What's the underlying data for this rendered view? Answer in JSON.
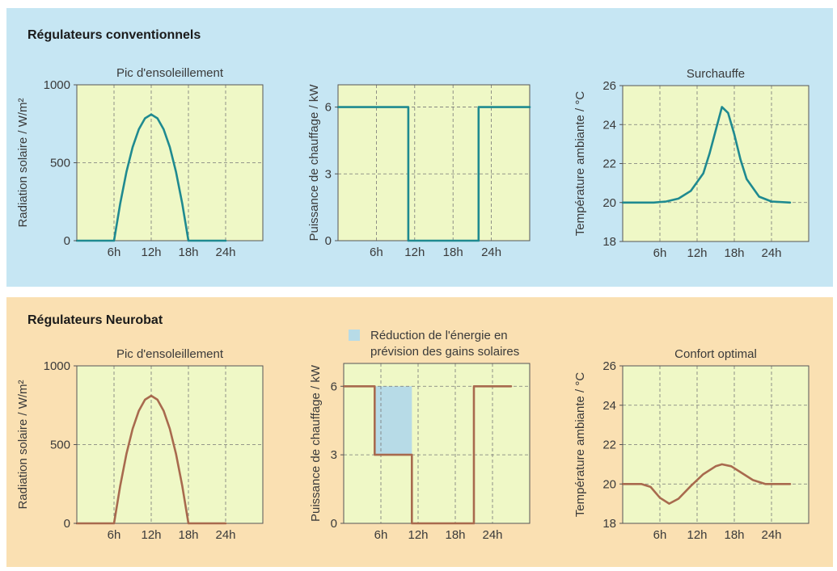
{
  "sections": {
    "top_title": "Régulateurs conventionnels",
    "bottom_title": "Régulateurs Neurobat"
  },
  "legend": {
    "text_line1": "Réduction de l'énergie en",
    "text_line2": "prévision des gains solaires",
    "swatch_color": "#b7dbe7"
  },
  "colors": {
    "plot_bg": "#eff8c6",
    "conventional_line": "#1f8a90",
    "neurobat_line": "#a86a4e"
  },
  "chart_data": [
    {
      "type": "line",
      "title": "Pic d'ensoleillement",
      "ylabel": "Radiation solaire / W/m²",
      "xlabel": "",
      "x_tick_labels": [
        "6h",
        "12h",
        "18h",
        "24h"
      ],
      "y_ticks": [
        0,
        500,
        1000
      ],
      "ylim": [
        0,
        1000
      ],
      "xlim": [
        0,
        30
      ],
      "grid": true,
      "series": [
        {
          "x": [
            0,
            6,
            7,
            8,
            9,
            10,
            11,
            12,
            13,
            14,
            15,
            16,
            17,
            18,
            24
          ],
          "y": [
            0,
            0,
            240,
            440,
            600,
            715,
            785,
            810,
            785,
            715,
            600,
            440,
            240,
            0,
            0
          ]
        }
      ]
    },
    {
      "type": "line",
      "title": "",
      "ylabel": "Puissance de chauffage / kW",
      "xlabel": "",
      "x_tick_labels": [
        "6h",
        "12h",
        "18h",
        "24h"
      ],
      "y_ticks": [
        0,
        3,
        6
      ],
      "ylim": [
        0,
        7
      ],
      "xlim": [
        0,
        30
      ],
      "grid": true,
      "series": [
        {
          "x": [
            0,
            11,
            11,
            22,
            22,
            30
          ],
          "y": [
            6,
            6,
            0,
            0,
            6,
            6
          ]
        }
      ]
    },
    {
      "type": "line",
      "title": "Surchauffe",
      "ylabel": "Température ambiante / °C",
      "xlabel": "",
      "x_tick_labels": [
        "6h",
        "12h",
        "18h",
        "24h"
      ],
      "y_ticks": [
        18,
        20,
        22,
        24,
        26
      ],
      "ylim": [
        18,
        26
      ],
      "xlim": [
        0,
        30
      ],
      "grid": true,
      "series": [
        {
          "x": [
            0,
            5,
            7,
            9,
            11,
            13,
            14,
            15,
            16,
            17,
            18,
            19,
            20,
            22,
            24,
            27
          ],
          "y": [
            20,
            20,
            20.05,
            20.2,
            20.6,
            21.5,
            22.5,
            23.7,
            24.9,
            24.6,
            23.5,
            22.2,
            21.2,
            20.3,
            20.05,
            20
          ]
        }
      ]
    },
    {
      "type": "line",
      "title": "Pic d'ensoleillement",
      "ylabel": "Radiation solaire / W/m²",
      "xlabel": "",
      "x_tick_labels": [
        "6h",
        "12h",
        "18h",
        "24h"
      ],
      "y_ticks": [
        0,
        500,
        1000
      ],
      "ylim": [
        0,
        1000
      ],
      "xlim": [
        0,
        30
      ],
      "grid": true,
      "series": [
        {
          "x": [
            0,
            6,
            7,
            8,
            9,
            10,
            11,
            12,
            13,
            14,
            15,
            16,
            17,
            18,
            24
          ],
          "y": [
            0,
            0,
            240,
            440,
            600,
            715,
            785,
            810,
            785,
            715,
            600,
            440,
            240,
            0,
            0
          ]
        }
      ]
    },
    {
      "type": "line",
      "title": "",
      "ylabel": "Puissance de chauffage / kW",
      "xlabel": "",
      "x_tick_labels": [
        "6h",
        "12h",
        "18h",
        "24h"
      ],
      "y_ticks": [
        0,
        3,
        6
      ],
      "ylim": [
        0,
        7
      ],
      "xlim": [
        0,
        30
      ],
      "grid": true,
      "shaded_region": {
        "x": [
          5,
          11
        ],
        "y": [
          3,
          6
        ]
      },
      "series": [
        {
          "x": [
            0,
            5,
            5,
            11,
            11,
            21,
            21,
            27
          ],
          "y": [
            6,
            6,
            3,
            3,
            0,
            0,
            6,
            6
          ]
        }
      ]
    },
    {
      "type": "line",
      "title": "Confort optimal",
      "ylabel": "Température ambiante / °C",
      "xlabel": "",
      "x_tick_labels": [
        "6h",
        "12h",
        "18h",
        "24h"
      ],
      "y_ticks": [
        18,
        20,
        22,
        24,
        26
      ],
      "ylim": [
        18,
        26
      ],
      "xlim": [
        0,
        30
      ],
      "grid": true,
      "series": [
        {
          "x": [
            0,
            3,
            4.5,
            6,
            7.5,
            9,
            11,
            13,
            15,
            16,
            17.5,
            19,
            21,
            23,
            24,
            27
          ],
          "y": [
            20,
            20,
            19.85,
            19.3,
            19,
            19.25,
            19.9,
            20.5,
            20.9,
            21,
            20.9,
            20.6,
            20.2,
            20,
            20,
            20
          ]
        }
      ]
    }
  ]
}
